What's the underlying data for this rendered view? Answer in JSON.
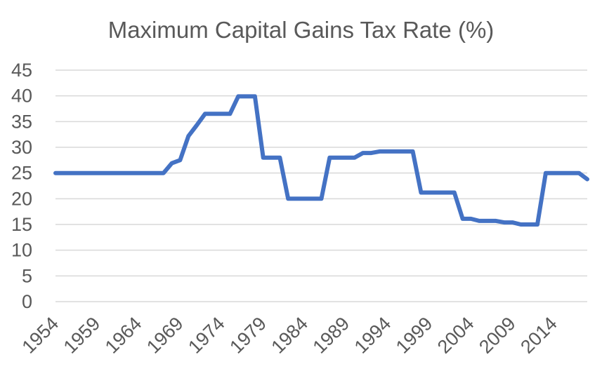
{
  "chart_data": {
    "type": "line",
    "title": "Maximum Capital Gains Tax Rate (%)",
    "xlabel": "",
    "ylabel": "",
    "xlim": [
      1954,
      2018
    ],
    "ylim": [
      0,
      45
    ],
    "y_ticks": [
      "0",
      "5",
      "10",
      "15",
      "20",
      "25",
      "30",
      "35",
      "40",
      "45"
    ],
    "x_ticks": [
      "1954",
      "1959",
      "1964",
      "1969",
      "1974",
      "1979",
      "1984",
      "1989",
      "1994",
      "1999",
      "2004",
      "2009",
      "2014"
    ],
    "grid": true,
    "legend": "none",
    "color": "#4472c4",
    "series": [
      {
        "x": [
          1954,
          1955,
          1956,
          1957,
          1958,
          1959,
          1960,
          1961,
          1962,
          1963,
          1964,
          1965,
          1966,
          1967,
          1968,
          1969,
          1970,
          1971,
          1972,
          1973,
          1974,
          1975,
          1976,
          1977,
          1978,
          1979,
          1980,
          1981,
          1982,
          1983,
          1984,
          1985,
          1986,
          1987,
          1988,
          1989,
          1990,
          1991,
          1992,
          1993,
          1994,
          1995,
          1996,
          1997,
          1998,
          1999,
          2000,
          2001,
          2002,
          2003,
          2004,
          2005,
          2006,
          2007,
          2008,
          2009,
          2010,
          2011,
          2012,
          2013,
          2014,
          2015,
          2016,
          2017,
          2018
        ],
        "values": [
          25,
          25,
          25,
          25,
          25,
          25,
          25,
          25,
          25,
          25,
          25,
          25,
          25,
          25,
          26.9,
          27.5,
          32.2,
          34.3,
          36.5,
          36.5,
          36.5,
          36.5,
          39.9,
          39.9,
          39.9,
          28,
          28,
          28,
          20,
          20,
          20,
          20,
          20,
          28,
          28,
          28,
          28,
          28.9,
          28.9,
          29.2,
          29.2,
          29.2,
          29.2,
          29.2,
          21.2,
          21.2,
          21.2,
          21.2,
          21.2,
          16.1,
          16.1,
          15.7,
          15.7,
          15.7,
          15.4,
          15.4,
          15,
          15,
          15,
          25,
          25,
          25,
          25,
          25,
          23.8
        ]
      }
    ]
  }
}
